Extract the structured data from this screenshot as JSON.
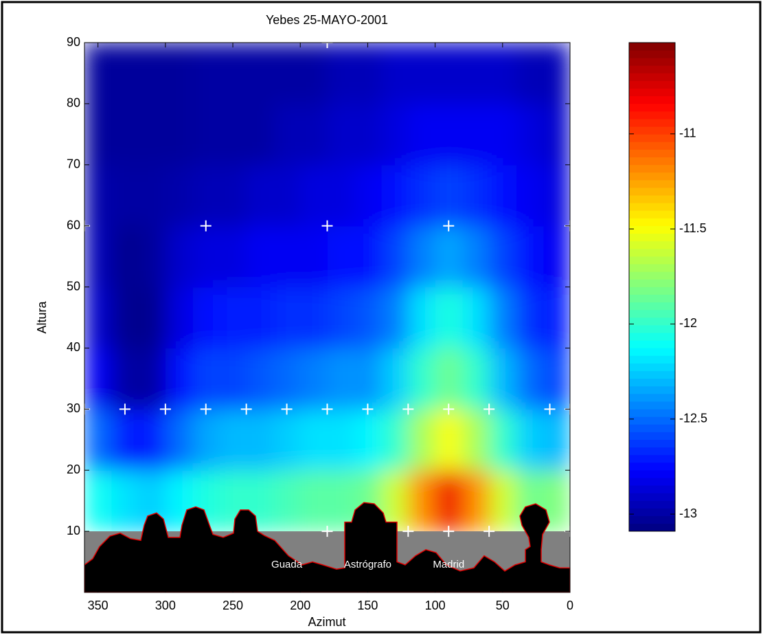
{
  "chart_data": {
    "type": "heatmap",
    "title": "Yebes 25-MAYO-2001",
    "x_label": "Azimut",
    "y_label": "Altura",
    "xlim": [
      360,
      0
    ],
    "ylim": [
      0,
      90
    ],
    "xticks": [
      350,
      300,
      250,
      200,
      150,
      100,
      50,
      0
    ],
    "yticks": [
      10,
      20,
      30,
      40,
      50,
      60,
      70,
      80,
      90
    ],
    "colormap": "jet",
    "clim": [
      -13.09,
      -10.52
    ],
    "colorbar_ticks": [
      -11,
      -11.5,
      -12,
      -12.5,
      -13
    ],
    "x": [
      10,
      30,
      50,
      70,
      90,
      110,
      130,
      150,
      170,
      190,
      210,
      230,
      250,
      270,
      290,
      310,
      330,
      350
    ],
    "y": [
      15,
      25,
      35,
      45,
      55,
      65,
      75,
      85
    ],
    "z": [
      [
        -11.8,
        -11.85,
        -11.6,
        -11.2,
        -10.8,
        -11.2,
        -11.6,
        -11.85,
        -11.9,
        -11.9,
        -11.95,
        -12.0,
        -12.0,
        -12.05,
        -12.15,
        -12.25,
        -12.2,
        -12.1
      ],
      [
        -12.3,
        -12.25,
        -12.0,
        -11.7,
        -11.5,
        -11.7,
        -12.0,
        -12.15,
        -12.2,
        -12.2,
        -12.25,
        -12.3,
        -12.3,
        -12.35,
        -12.5,
        -12.7,
        -12.7,
        -12.5
      ],
      [
        -12.6,
        -12.5,
        -12.3,
        -12.0,
        -11.85,
        -12.0,
        -12.25,
        -12.4,
        -12.4,
        -12.45,
        -12.5,
        -12.55,
        -12.6,
        -12.6,
        -12.75,
        -13.0,
        -13.0,
        -12.8
      ],
      [
        -12.7,
        -12.65,
        -12.45,
        -12.2,
        -12.05,
        -12.2,
        -12.45,
        -12.55,
        -12.6,
        -12.65,
        -12.65,
        -12.7,
        -12.7,
        -12.75,
        -12.85,
        -13.05,
        -13.05,
        -12.9
      ],
      [
        -12.8,
        -12.75,
        -12.6,
        -12.45,
        -12.35,
        -12.45,
        -12.6,
        -12.75,
        -12.75,
        -12.8,
        -12.8,
        -12.8,
        -12.85,
        -12.85,
        -12.9,
        -13.02,
        -13.05,
        -12.95
      ],
      [
        -12.85,
        -12.8,
        -12.75,
        -12.65,
        -12.6,
        -12.65,
        -12.75,
        -12.8,
        -12.85,
        -12.85,
        -12.9,
        -12.9,
        -12.95,
        -12.95,
        -12.98,
        -13.0,
        -13.0,
        -12.98
      ],
      [
        -12.9,
        -12.85,
        -12.8,
        -12.8,
        -12.8,
        -12.8,
        -12.85,
        -12.9,
        -12.9,
        -12.95,
        -12.95,
        -13.0,
        -13.0,
        -13.0,
        -13.02,
        -13.02,
        -13.02,
        -13.02
      ],
      [
        -12.95,
        -12.95,
        -12.9,
        -12.9,
        -12.9,
        -12.9,
        -12.9,
        -12.95,
        -12.95,
        -13.0,
        -13.0,
        -13.0,
        -13.0,
        -13.0,
        -13.02,
        -13.02,
        -13.02,
        -13.02
      ]
    ],
    "points": {
      "x": [
        180,
        360,
        270,
        180,
        90,
        0,
        360,
        330,
        300,
        270,
        240,
        210,
        180,
        150,
        120,
        90,
        60,
        15,
        0,
        180,
        120,
        90,
        60,
        0
      ],
      "y": [
        90,
        60,
        60,
        60,
        60,
        60,
        30,
        30,
        30,
        30,
        30,
        30,
        30,
        30,
        30,
        30,
        30,
        30,
        30,
        10,
        10,
        10,
        10,
        10
      ]
    },
    "annotations": [
      "Guada",
      "Astrógrafo",
      "Madrid"
    ]
  }
}
